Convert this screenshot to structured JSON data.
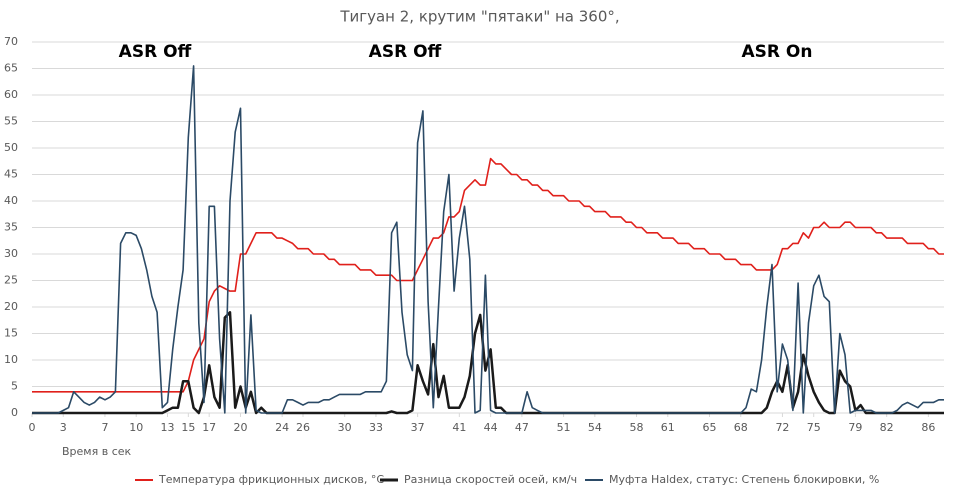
{
  "chart_data": {
    "type": "line",
    "title": "Тигуан 2, крутим \"пятаки\" на 360°,",
    "xlabel": "Время в сек",
    "annotations": [
      "ASR Off",
      "ASR Off",
      "ASR On"
    ],
    "x": [
      0,
      0.5,
      1,
      1.5,
      2,
      2.5,
      3,
      3.5,
      4,
      4.5,
      5,
      5.5,
      6,
      6.5,
      7,
      7.5,
      8,
      8.5,
      9,
      9.5,
      10,
      10.5,
      11,
      11.5,
      12,
      12.5,
      13,
      13.5,
      14,
      14.5,
      15,
      15.5,
      16,
      16.5,
      17,
      17.5,
      18,
      18.5,
      19,
      19.5,
      20,
      20.5,
      21,
      21.5,
      22,
      22.5,
      23,
      23.5,
      24,
      24.5,
      25,
      25.5,
      26,
      26.5,
      27,
      27.5,
      28,
      28.5,
      29,
      29.5,
      30,
      30.5,
      31,
      31.5,
      32,
      32.5,
      33,
      33.5,
      34,
      34.5,
      35,
      35.5,
      36,
      36.5,
      37,
      37.5,
      38,
      38.5,
      39,
      39.5,
      40,
      40.5,
      41,
      41.5,
      42,
      42.5,
      43,
      43.5,
      44,
      44.5,
      45,
      45.5,
      46,
      46.5,
      47,
      47.5,
      48,
      48.5,
      49,
      49.5,
      50,
      50.5,
      51,
      51.5,
      52,
      52.5,
      53,
      53.5,
      54,
      54.5,
      55,
      55.5,
      56,
      56.5,
      57,
      57.5,
      58,
      58.5,
      59,
      59.5,
      60,
      60.5,
      61,
      61.5,
      62,
      62.5,
      63,
      63.5,
      64,
      64.5,
      65,
      65.5,
      66,
      66.5,
      67,
      67.5,
      68,
      68.5,
      69,
      69.5,
      70,
      70.5,
      71,
      71.5,
      72,
      72.5,
      73,
      73.5,
      74,
      74.5,
      75,
      75.5,
      76,
      76.5,
      77,
      77.5,
      78,
      78.5,
      79,
      79.5,
      80,
      80.5,
      81,
      81.5,
      82,
      82.5,
      83,
      83.5,
      84,
      84.5,
      85,
      85.5,
      86,
      86.5,
      87,
      87.5
    ],
    "series": [
      {
        "name": "Температура фрикционных дисков, °С",
        "color": "#e0201b",
        "values": [
          4,
          4,
          4,
          4,
          4,
          4,
          4,
          4,
          4,
          4,
          4,
          4,
          4,
          4,
          4,
          4,
          4,
          4,
          4,
          4,
          4,
          4,
          4,
          4,
          4,
          4,
          4,
          4,
          4,
          4,
          6,
          10,
          12,
          14,
          21,
          23,
          24,
          23.5,
          23,
          23,
          30,
          30,
          32,
          34,
          34,
          34,
          34,
          33,
          33,
          32.5,
          32,
          31,
          31,
          31,
          30,
          30,
          30,
          29,
          29,
          28,
          28,
          28,
          28,
          27,
          27,
          27,
          26,
          26,
          26,
          26,
          25,
          25,
          25,
          25,
          27,
          29,
          31,
          33,
          33,
          34,
          37,
          37,
          38,
          42,
          43,
          44,
          43,
          43,
          48,
          47,
          47,
          46,
          45,
          45,
          44,
          44,
          43,
          43,
          42,
          42,
          41,
          41,
          41,
          40,
          40,
          40,
          39,
          39,
          38,
          38,
          38,
          37,
          37,
          37,
          36,
          36,
          35,
          35,
          34,
          34,
          34,
          33,
          33,
          33,
          32,
          32,
          32,
          31,
          31,
          31,
          30,
          30,
          30,
          29,
          29,
          29,
          28,
          28,
          28,
          27,
          27,
          27,
          27,
          28,
          31,
          31,
          32,
          32,
          34,
          33,
          35,
          35,
          36,
          35,
          35,
          35,
          36,
          36,
          35,
          35,
          35,
          35,
          34,
          34,
          33,
          33,
          33,
          33,
          32,
          32,
          32,
          32,
          31,
          31,
          30,
          30
        ]
      },
      {
        "name": "Разница скоростей осей, км/ч",
        "color": "#1a1a1a",
        "values": [
          0,
          0,
          0,
          0,
          0,
          0,
          0,
          0,
          0,
          0,
          0,
          0,
          0,
          0,
          0,
          0,
          0,
          0,
          0,
          0,
          0,
          0,
          0,
          0,
          0,
          0,
          0.5,
          1,
          1,
          6,
          6,
          1,
          0,
          3,
          9,
          3,
          1,
          18,
          19,
          1,
          5,
          1,
          4,
          0,
          1,
          0,
          0,
          0,
          0,
          0,
          0,
          0,
          0,
          0,
          0,
          0,
          0,
          0,
          0,
          0,
          0,
          0,
          0,
          0,
          0,
          0,
          0,
          0,
          0,
          0.3,
          0,
          0,
          0,
          0.5,
          9,
          6,
          3.5,
          13,
          3,
          7,
          1,
          1,
          1,
          3,
          7,
          15,
          18.5,
          8,
          12,
          1,
          1,
          0,
          0,
          0,
          0,
          0,
          0,
          0,
          0,
          0,
          0,
          0,
          0,
          0,
          0,
          0,
          0,
          0,
          0,
          0,
          0,
          0,
          0,
          0,
          0,
          0,
          0,
          0,
          0,
          0,
          0,
          0,
          0,
          0,
          0,
          0,
          0,
          0,
          0,
          0,
          0,
          0,
          0,
          0,
          0,
          0,
          0,
          0,
          0,
          0,
          0,
          1,
          4,
          6,
          4,
          9,
          1,
          4,
          11,
          7,
          4,
          2,
          0.5,
          0,
          0,
          8,
          6,
          5,
          0.5,
          1.5,
          0,
          0,
          0,
          0,
          0,
          0,
          0,
          0,
          0,
          0,
          0,
          0,
          0,
          0,
          0,
          0
        ]
      },
      {
        "name": "Муфта Haldex, статус: Степень блокировки, %",
        "color": "#2b4a66",
        "values": [
          0,
          0,
          0,
          0,
          0,
          0,
          0.5,
          1,
          4,
          3,
          2,
          1.5,
          2,
          3,
          2.5,
          3,
          4,
          32,
          34,
          34,
          33.5,
          31,
          27,
          22,
          19,
          1,
          2,
          12,
          20,
          27,
          52,
          65.5,
          17,
          2,
          39,
          39,
          14,
          0,
          40,
          53,
          57.5,
          0,
          18.5,
          0.5,
          0,
          0,
          0,
          0,
          0,
          2.5,
          2.5,
          2,
          1.5,
          2,
          2,
          2,
          2.5,
          2.5,
          3,
          3.5,
          3.5,
          3.5,
          3.5,
          3.5,
          4,
          4,
          4,
          4,
          6,
          34,
          36,
          19,
          11,
          8,
          51,
          57,
          21,
          1,
          20,
          38,
          45,
          23,
          33,
          39,
          29,
          0,
          0.5,
          26,
          0.5,
          0,
          0,
          0,
          0,
          0,
          0,
          4,
          1,
          0.5,
          0,
          0,
          0,
          0,
          0,
          0,
          0,
          0,
          0,
          0,
          0,
          0,
          0,
          0,
          0,
          0,
          0,
          0,
          0,
          0,
          0,
          0,
          0,
          0,
          0,
          0,
          0,
          0,
          0,
          0,
          0,
          0,
          0,
          0,
          0,
          0,
          0,
          0,
          0,
          1,
          4.5,
          4,
          10,
          20,
          28,
          4,
          13,
          10,
          0.5,
          24.5,
          0,
          17,
          24,
          26,
          22,
          21,
          0,
          15,
          11,
          0,
          0.5,
          0.5,
          0.5,
          0.5,
          0,
          0,
          0,
          0,
          0.5,
          1.5,
          2,
          1.5,
          1,
          2,
          2,
          2,
          2.5,
          2.5
        ]
      }
    ],
    "xlim": [
      0,
      87.5
    ],
    "xticks": [
      0,
      3,
      7,
      10,
      13,
      15,
      17,
      20,
      24,
      26,
      30,
      33,
      37,
      41,
      44,
      47,
      51,
      54,
      58,
      61,
      65,
      68,
      72,
      75,
      79,
      82,
      86
    ],
    "ylim": [
      0,
      70
    ],
    "yticks": [
      0,
      5,
      10,
      15,
      20,
      25,
      30,
      35,
      40,
      45,
      50,
      55,
      60,
      65,
      70
    ],
    "grid": true,
    "legend": "bottom"
  }
}
